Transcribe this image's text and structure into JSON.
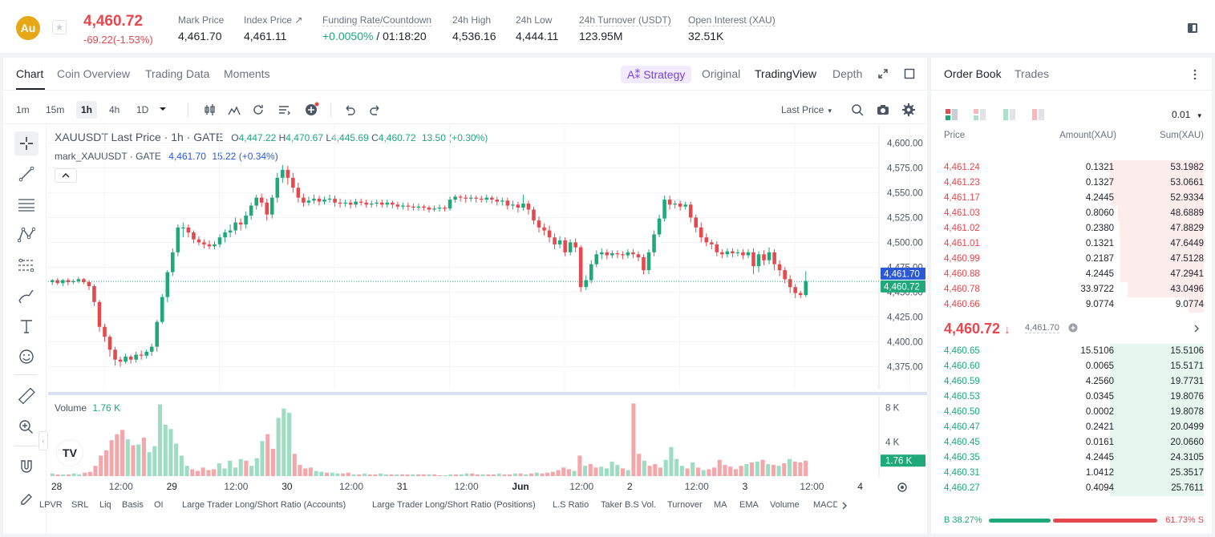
{
  "header": {
    "coin_symbol": "Au",
    "star_glyph": "★",
    "last_price": "4,460.72",
    "change": "-69.22(-1.53%)",
    "stats": [
      {
        "label": "Mark Price",
        "value": "4,461.70"
      },
      {
        "label": "Index Price ↗",
        "value": "4,461.11"
      },
      {
        "label": "Funding Rate/Countdown",
        "value_green": "+0.0050%",
        "value": " / 01:18:20"
      },
      {
        "label": "24h High",
        "value": "4,536.16"
      },
      {
        "label": "24h Low",
        "value": "4,444.11"
      },
      {
        "label": "24h Turnover (USDT)",
        "value": "123.95M"
      },
      {
        "label": "Open Interest (XAU)",
        "value": "32.51K"
      }
    ]
  },
  "chart_tabs": [
    "Chart",
    "Coin Overview",
    "Trading Data",
    "Moments"
  ],
  "view_tabs": {
    "strategy": "A⁑ Strategy",
    "original": "Original",
    "tradingview": "TradingView",
    "depth": "Depth"
  },
  "toolbar": {
    "timeframes": [
      "1m",
      "15m",
      "1h",
      "4h",
      "1D"
    ],
    "active_timeframe": "1h",
    "last_price_select": "Last Price"
  },
  "legend": {
    "title": "XAUUSDT Last Price · 1h · GATE",
    "o": "4,447.22",
    "h": "4,470.67",
    "l": "4,445.69",
    "c": "4,460.72",
    "chg": "13.50 (+0.30%)",
    "mark_label": "mark_XAUUSDT · GATE",
    "mark_value": "4,461.70",
    "mark_chg": "15.22 (+0.34%)",
    "volume_label": "Volume",
    "volume_value": "1.76 K"
  },
  "price_axis": [
    "4,600.00",
    "4,575.00",
    "4,550.00",
    "4,525.00",
    "4,500.00",
    "4,475.00",
    "4,450.00",
    "4,425.00",
    "4,400.00",
    "4,375.00"
  ],
  "price_tags": {
    "mark": "4,461.70",
    "last": "4,460.72"
  },
  "volume_axis": [
    "8 K",
    "4 K"
  ],
  "volume_tag": "1.76 K",
  "time_axis": [
    "28",
    "12:00",
    "29",
    "12:00",
    "30",
    "12:00",
    "31",
    "12:00",
    "Jun",
    "12:00",
    "2",
    "12:00",
    "3",
    "12:00",
    "4"
  ],
  "indicators": [
    "LPVR",
    "SRL",
    "Liq",
    "Basis",
    "OI",
    "Large Trader Long/Short Ratio (Accounts)",
    "Large Trader Long/Short Ratio (Positions)",
    "L.S Ratio",
    "Taker B.S Vol.",
    "Turnover",
    "MA",
    "EMA",
    "Volume",
    "MACD"
  ],
  "order_book": {
    "tabs": [
      "Order Book",
      "Trades"
    ],
    "precision": "0.01",
    "headers": {
      "price": "Price",
      "amount": "Amount(XAU)",
      "sum": "Sum(XAU)"
    },
    "asks": [
      {
        "price": "4,461.24",
        "amount": "0.1321",
        "sum": "53.1982",
        "depth": 0.9
      },
      {
        "price": "4,461.23",
        "amount": "0.1327",
        "sum": "53.0661",
        "depth": 0.9
      },
      {
        "price": "4,461.17",
        "amount": "4.2445",
        "sum": "52.9334",
        "depth": 0.89
      },
      {
        "price": "4,461.03",
        "amount": "0.8060",
        "sum": "48.6889",
        "depth": 0.82
      },
      {
        "price": "4,461.02",
        "amount": "0.2380",
        "sum": "47.8829",
        "depth": 0.81
      },
      {
        "price": "4,461.01",
        "amount": "0.1321",
        "sum": "47.6449",
        "depth": 0.8
      },
      {
        "price": "4,460.99",
        "amount": "0.2187",
        "sum": "47.5128",
        "depth": 0.8
      },
      {
        "price": "4,460.88",
        "amount": "4.2445",
        "sum": "47.2941",
        "depth": 0.8
      },
      {
        "price": "4,460.78",
        "amount": "33.9722",
        "sum": "43.0496",
        "depth": 0.73
      },
      {
        "price": "4,460.66",
        "amount": "9.0774",
        "sum": "9.0774",
        "depth": 0.15
      }
    ],
    "mid_price": "4,460.72",
    "mid_arrow": "↓",
    "mid_mark": "4,461.70",
    "bids": [
      {
        "price": "4,460.65",
        "amount": "15.5106",
        "sum": "15.5106",
        "depth": 0.9
      },
      {
        "price": "4,460.60",
        "amount": "0.0065",
        "sum": "15.5171",
        "depth": 0.9
      },
      {
        "price": "4,460.59",
        "amount": "4.2560",
        "sum": "19.7731",
        "depth": 0.9
      },
      {
        "price": "4,460.53",
        "amount": "0.0345",
        "sum": "19.8076",
        "depth": 0.9
      },
      {
        "price": "4,460.50",
        "amount": "0.0002",
        "sum": "19.8078",
        "depth": 0.9
      },
      {
        "price": "4,460.47",
        "amount": "0.2421",
        "sum": "20.0499",
        "depth": 0.9
      },
      {
        "price": "4,460.45",
        "amount": "0.0161",
        "sum": "20.0660",
        "depth": 0.9
      },
      {
        "price": "4,460.35",
        "amount": "4.2445",
        "sum": "24.3105",
        "depth": 0.9
      },
      {
        "price": "4,460.31",
        "amount": "1.0412",
        "sum": "25.3517",
        "depth": 0.9
      },
      {
        "price": "4,460.27",
        "amount": "0.4094",
        "sum": "25.7611",
        "depth": 0.9
      }
    ],
    "buy_label": "B 38.27%",
    "sell_label": "61.73% S",
    "buy_ratio": 0.3827
  },
  "colors": {
    "up": "#1fa87a",
    "down": "#e5484d",
    "accent": "#2b59d6",
    "strategy": "#7b3fe4"
  },
  "chart_data": {
    "type": "candlestick",
    "title": "XAUUSDT Last Price · 1h · GATE",
    "ylim": [
      4360,
      4610
    ],
    "candles": [
      [
        4460,
        4462,
        4457,
        4463
      ],
      [
        4462,
        4459,
        4457,
        4464
      ],
      [
        4459,
        4462,
        4456,
        4463
      ],
      [
        4462,
        4460,
        4457,
        4464
      ],
      [
        4460,
        4461,
        4458,
        4463
      ],
      [
        4461,
        4463,
        4459,
        4465
      ],
      [
        4463,
        4460,
        4458,
        4464
      ],
      [
        4460,
        4456,
        4452,
        4462
      ],
      [
        4456,
        4440,
        4436,
        4458
      ],
      [
        4440,
        4415,
        4410,
        4442
      ],
      [
        4415,
        4405,
        4400,
        4418
      ],
      [
        4405,
        4392,
        4385,
        4407
      ],
      [
        4392,
        4382,
        4376,
        4395
      ],
      [
        4382,
        4380,
        4375,
        4385
      ],
      [
        4380,
        4385,
        4378,
        4388
      ],
      [
        4385,
        4382,
        4378,
        4387
      ],
      [
        4382,
        4387,
        4379,
        4390
      ],
      [
        4387,
        4386,
        4382,
        4391
      ],
      [
        4386,
        4390,
        4383,
        4392
      ],
      [
        4390,
        4395,
        4386,
        4398
      ],
      [
        4395,
        4420,
        4390,
        4422
      ],
      [
        4420,
        4445,
        4418,
        4448
      ],
      [
        4445,
        4470,
        4440,
        4472
      ],
      [
        4470,
        4490,
        4466,
        4494
      ],
      [
        4490,
        4515,
        4486,
        4518
      ],
      [
        4515,
        4515,
        4505,
        4520
      ],
      [
        4515,
        4510,
        4505,
        4518
      ],
      [
        4510,
        4503,
        4499,
        4512
      ],
      [
        4503,
        4500,
        4497,
        4506
      ],
      [
        4500,
        4498,
        4494,
        4503
      ],
      [
        4498,
        4496,
        4493,
        4502
      ],
      [
        4496,
        4498,
        4493,
        4501
      ],
      [
        4498,
        4505,
        4495,
        4508
      ],
      [
        4505,
        4510,
        4500,
        4513
      ],
      [
        4510,
        4512,
        4505,
        4518
      ],
      [
        4512,
        4520,
        4508,
        4525
      ],
      [
        4520,
        4518,
        4512,
        4524
      ],
      [
        4518,
        4527,
        4514,
        4531
      ],
      [
        4527,
        4537,
        4523,
        4540
      ],
      [
        4537,
        4545,
        4533,
        4548
      ],
      [
        4545,
        4540,
        4536,
        4549
      ],
      [
        4540,
        4528,
        4522,
        4544
      ],
      [
        4528,
        4545,
        4524,
        4548
      ],
      [
        4545,
        4565,
        4540,
        4570
      ],
      [
        4565,
        4573,
        4560,
        4578
      ],
      [
        4573,
        4565,
        4558,
        4577
      ],
      [
        4565,
        4555,
        4550,
        4570
      ],
      [
        4555,
        4545,
        4540,
        4560
      ],
      [
        4545,
        4540,
        4536,
        4549
      ],
      [
        4540,
        4542,
        4537,
        4546
      ],
      [
        4542,
        4544,
        4539,
        4548
      ],
      [
        4544,
        4541,
        4537,
        4547
      ],
      [
        4541,
        4543,
        4538,
        4546
      ],
      [
        4543,
        4544,
        4540,
        4548
      ],
      [
        4544,
        4540,
        4536,
        4547
      ],
      [
        4540,
        4539,
        4535,
        4544
      ],
      [
        4539,
        4540,
        4536,
        4543
      ],
      [
        4540,
        4538,
        4534,
        4543
      ],
      [
        4538,
        4541,
        4535,
        4544
      ],
      [
        4541,
        4540,
        4537,
        4544
      ],
      [
        4540,
        4538,
        4535,
        4543
      ],
      [
        4538,
        4539,
        4535,
        4542
      ],
      [
        4539,
        4540,
        4536,
        4543
      ],
      [
        4540,
        4538,
        4535,
        4543
      ],
      [
        4538,
        4540,
        4535,
        4543
      ],
      [
        4540,
        4538,
        4534,
        4542
      ],
      [
        4538,
        4536,
        4533,
        4541
      ],
      [
        4536,
        4537,
        4533,
        4540
      ],
      [
        4537,
        4536,
        4532,
        4540
      ],
      [
        4536,
        4535,
        4532,
        4539
      ],
      [
        4535,
        4536,
        4532,
        4539
      ],
      [
        4536,
        4535,
        4532,
        4538
      ],
      [
        4535,
        4533,
        4530,
        4537
      ],
      [
        4533,
        4534,
        4531,
        4537
      ],
      [
        4534,
        4535,
        4531,
        4538
      ],
      [
        4535,
        4534,
        4531,
        4537
      ],
      [
        4534,
        4543,
        4532,
        4546
      ],
      [
        4543,
        4546,
        4540,
        4548
      ],
      [
        4546,
        4545,
        4541,
        4548
      ],
      [
        4545,
        4544,
        4540,
        4548
      ],
      [
        4544,
        4545,
        4541,
        4548
      ],
      [
        4545,
        4544,
        4540,
        4547
      ],
      [
        4544,
        4543,
        4540,
        4547
      ],
      [
        4543,
        4545,
        4540,
        4548
      ],
      [
        4545,
        4543,
        4539,
        4547
      ],
      [
        4543,
        4541,
        4537,
        4546
      ],
      [
        4541,
        4542,
        4537,
        4545
      ],
      [
        4542,
        4537,
        4533,
        4545
      ],
      [
        4537,
        4538,
        4533,
        4542
      ],
      [
        4538,
        4535,
        4530,
        4541
      ],
      [
        4535,
        4539,
        4532,
        4548
      ],
      [
        4539,
        4533,
        4528,
        4542
      ],
      [
        4533,
        4522,
        4518,
        4536
      ],
      [
        4522,
        4515,
        4510,
        4526
      ],
      [
        4515,
        4512,
        4507,
        4519
      ],
      [
        4512,
        4505,
        4500,
        4517
      ],
      [
        4505,
        4498,
        4493,
        4509
      ],
      [
        4498,
        4502,
        4494,
        4506
      ],
      [
        4502,
        4490,
        4486,
        4505
      ],
      [
        4490,
        4500,
        4487,
        4503
      ],
      [
        4500,
        4495,
        4490,
        4504
      ],
      [
        4495,
        4455,
        4450,
        4497
      ],
      [
        4455,
        4462,
        4452,
        4467
      ],
      [
        4462,
        4478,
        4459,
        4482
      ],
      [
        4478,
        4488,
        4475,
        4492
      ],
      [
        4488,
        4490,
        4483,
        4494
      ],
      [
        4490,
        4487,
        4483,
        4493
      ],
      [
        4487,
        4489,
        4484,
        4492
      ],
      [
        4489,
        4488,
        4484,
        4492
      ],
      [
        4488,
        4487,
        4483,
        4491
      ],
      [
        4487,
        4490,
        4484,
        4493
      ],
      [
        4490,
        4488,
        4484,
        4493
      ],
      [
        4488,
        4485,
        4481,
        4491
      ],
      [
        4485,
        4472,
        4468,
        4488
      ],
      [
        4472,
        4490,
        4468,
        4493
      ],
      [
        4490,
        4508,
        4486,
        4512
      ],
      [
        4508,
        4524,
        4505,
        4528
      ],
      [
        4524,
        4543,
        4521,
        4547
      ],
      [
        4543,
        4538,
        4533,
        4547
      ],
      [
        4538,
        4539,
        4534,
        4542
      ],
      [
        4539,
        4536,
        4532,
        4542
      ],
      [
        4536,
        4538,
        4533,
        4541
      ],
      [
        4538,
        4525,
        4520,
        4541
      ],
      [
        4525,
        4515,
        4510,
        4528
      ],
      [
        4515,
        4505,
        4500,
        4520
      ],
      [
        4505,
        4500,
        4496,
        4509
      ],
      [
        4500,
        4498,
        4493,
        4503
      ],
      [
        4498,
        4490,
        4486,
        4501
      ],
      [
        4490,
        4488,
        4484,
        4493
      ],
      [
        4488,
        4491,
        4485,
        4494
      ],
      [
        4491,
        4489,
        4485,
        4494
      ],
      [
        4489,
        4490,
        4486,
        4493
      ],
      [
        4490,
        4487,
        4483,
        4493
      ],
      [
        4487,
        4490,
        4484,
        4493
      ],
      [
        4490,
        4476,
        4468,
        4494
      ],
      [
        4476,
        4488,
        4470,
        4491
      ],
      [
        4488,
        4482,
        4477,
        4492
      ],
      [
        4482,
        4490,
        4478,
        4495
      ],
      [
        4490,
        4478,
        4472,
        4493
      ],
      [
        4478,
        4472,
        4466,
        4482
      ],
      [
        4472,
        4463,
        4459,
        4475
      ],
      [
        4463,
        4455,
        4449,
        4467
      ],
      [
        4455,
        4449,
        4444,
        4458
      ],
      [
        4449,
        4447,
        4444,
        4451
      ],
      [
        4447,
        4461,
        4445,
        4471
      ]
    ],
    "volume": [
      0.3,
      0.2,
      0.2,
      0.2,
      0.3,
      0.2,
      0.4,
      0.5,
      1.2,
      2.4,
      3.0,
      4.2,
      4.9,
      5.4,
      4.3,
      3.6,
      3.7,
      4.5,
      2.8,
      3.5,
      8.4,
      6.0,
      5.5,
      3.8,
      2.4,
      1.2,
      0.8,
      0.6,
      1.0,
      0.7,
      0.8,
      1.5,
      0.9,
      1.8,
      1.0,
      2.0,
      1.8,
      1.2,
      2.1,
      4.1,
      4.9,
      3.2,
      6.8,
      7.9,
      7.4,
      2.6,
      1.3,
      0.9,
      1.0,
      0.6,
      0.5,
      0.4,
      0.4,
      0.3,
      0.3,
      0.4,
      0.2,
      0.2,
      0.3,
      0.2,
      0.2,
      0.3,
      0.2,
      0.2,
      0.2,
      0.2,
      0.2,
      0.2,
      0.2,
      0.2,
      0.2,
      0.2,
      0.1,
      0.1,
      0.2,
      0.2,
      0.2,
      0.3,
      0.3,
      0.2,
      0.2,
      0.2,
      0.2,
      0.3,
      0.2,
      0.2,
      0.3,
      0.3,
      0.2,
      0.3,
      0.4,
      0.3,
      0.4,
      0.5,
      0.7,
      1.0,
      0.8,
      0.6,
      2.4,
      1.2,
      1.4,
      1.0,
      1.1,
      0.9,
      1.7,
      1.3,
      0.9,
      0.7,
      8.5,
      2.6,
      1.8,
      1.2,
      1.4,
      1.0,
      1.9,
      3.4,
      2.0,
      1.2,
      0.9,
      1.6,
      1.0,
      0.7,
      0.8,
      1.0,
      1.9,
      1.3,
      1.1,
      0.8,
      1.2,
      1.4,
      1.6,
      1.7,
      1.9,
      1.4,
      1.3,
      1.2,
      1.5,
      2.0,
      1.7,
      1.6,
      1.8
    ],
    "volume_ylim": [
      0,
      9
    ]
  }
}
